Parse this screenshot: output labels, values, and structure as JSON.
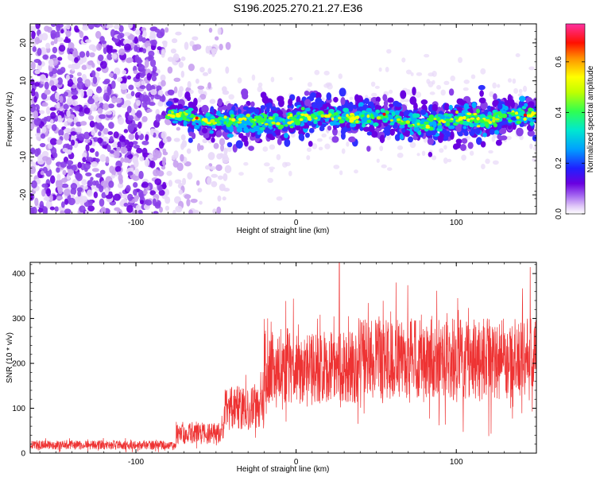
{
  "title": "S196.2025.270.21.27.E36",
  "chart_data": [
    {
      "type": "heatmap",
      "title": "S196.2025.270.21.27.E36",
      "xlabel": "Height of straight line (km)",
      "ylabel": "Frequency (Hz)",
      "xlim": [
        -166,
        150
      ],
      "ylim": [
        -25,
        25
      ],
      "x_ticks": [
        -100,
        0,
        100
      ],
      "y_ticks": [
        -20,
        -10,
        0,
        10,
        20
      ],
      "signal_band": {
        "x_start": -80,
        "x_end": 150,
        "center_frequency": 0,
        "half_width": 5
      },
      "noise_region": {
        "x_start": -166,
        "x_end": -42
      },
      "colorbar": {
        "label": "Normalized spectral amplitude",
        "range": [
          0.0,
          0.75
        ],
        "ticks": [
          0.0,
          0.2,
          0.4,
          0.6
        ],
        "tick_labels": [
          "0.0",
          "0.2",
          "0.4",
          "0.6"
        ]
      },
      "colors": [
        "#ffffff",
        "#e8d8f8",
        "#c8a0f0",
        "#8a40e8",
        "#6a00e0",
        "#3030ff",
        "#00b0ff",
        "#00e8c0",
        "#30ff40",
        "#c0ff00",
        "#ffff00",
        "#ff8000",
        "#ff0000",
        "#ff40b0"
      ]
    },
    {
      "type": "line",
      "xlabel": "Height of straight line (km)",
      "ylabel": "SNR (10 * v/v)",
      "xlim": [
        -166,
        150
      ],
      "ylim": [
        0,
        425
      ],
      "x_ticks": [
        -100,
        0,
        100
      ],
      "y_ticks": [
        0,
        100,
        200,
        300,
        400
      ],
      "color": "#ee3333",
      "segments": [
        {
          "x_start": -166,
          "x_end": -75,
          "baseline": 18,
          "spread": 10
        },
        {
          "x_start": -75,
          "x_end": -45,
          "baseline": 45,
          "spread": 25
        },
        {
          "x_start": -45,
          "x_end": -20,
          "baseline": 100,
          "spread": 50
        },
        {
          "x_start": -20,
          "x_end": 40,
          "baseline": 190,
          "spread": 80
        },
        {
          "x_start": 40,
          "x_end": 150,
          "baseline": 210,
          "spread": 90
        }
      ],
      "peak": {
        "x": 27,
        "y": 425
      }
    }
  ]
}
